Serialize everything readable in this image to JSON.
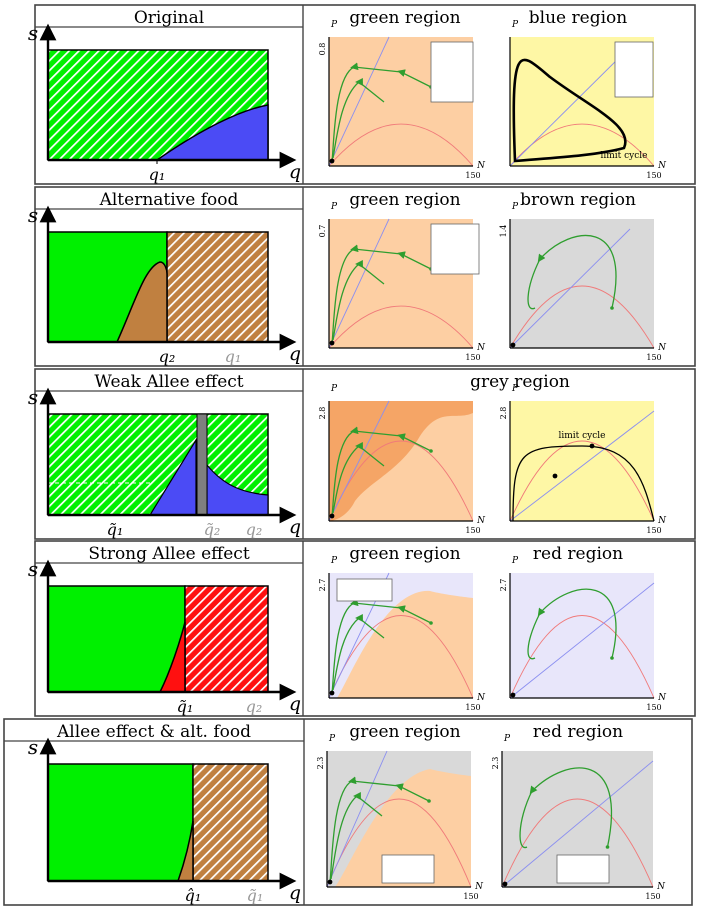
{
  "rows": [
    {
      "title": "Original",
      "s_label": "s",
      "q_label": "q",
      "left_ticks": [
        "q₁"
      ],
      "right_headers": [
        "green region",
        "blue region"
      ],
      "plots": [
        {
          "P_tick": "0.8",
          "N_tick": "150",
          "P_label": "P",
          "N_label": "N",
          "annotation": ""
        },
        {
          "P_tick": "",
          "N_tick": "150",
          "P_label": "P",
          "N_label": "N",
          "annotation": "limit cycle"
        }
      ]
    },
    {
      "title": "Alternative food",
      "s_label": "s",
      "q_label": "q",
      "left_ticks": [
        "q₂",
        "q₁"
      ],
      "right_headers": [
        "green region",
        "brown region"
      ],
      "plots": [
        {
          "P_tick": "0.7",
          "N_tick": "150",
          "P_label": "P",
          "N_label": "N",
          "annotation": ""
        },
        {
          "P_tick": "1.4",
          "N_tick": "150",
          "P_label": "P",
          "N_label": "N",
          "annotation": ""
        }
      ]
    },
    {
      "title": "Weak Allee effect",
      "s_label": "s",
      "q_label": "q",
      "left_ticks": [
        "q̃₁",
        "q̃₂",
        "q₂"
      ],
      "right_headers": [
        "grey region"
      ],
      "plots": [
        {
          "P_tick": "2.8",
          "N_tick": "150",
          "P_label": "P",
          "N_label": "N",
          "annotation": ""
        },
        {
          "P_tick": "2.8",
          "N_tick": "150",
          "P_label": "P",
          "N_label": "N",
          "annotation": "limit cycle"
        }
      ]
    },
    {
      "title": "Strong Allee effect",
      "s_label": "s",
      "q_label": "q",
      "left_ticks": [
        "q̃₁",
        "q₂"
      ],
      "right_headers": [
        "green region",
        "red region"
      ],
      "plots": [
        {
          "P_tick": "2.7",
          "N_tick": "150",
          "P_label": "P",
          "N_label": "N",
          "annotation": ""
        },
        {
          "P_tick": "2.7",
          "N_tick": "150",
          "P_label": "P",
          "N_label": "N",
          "annotation": ""
        }
      ]
    },
    {
      "title": "Allee effect & alt. food",
      "s_label": "s",
      "q_label": "q",
      "left_ticks": [
        "q̂₁",
        "q̃₁"
      ],
      "right_headers": [
        "green region",
        "red region"
      ],
      "plots": [
        {
          "P_tick": "2.3",
          "N_tick": "150",
          "P_label": "P",
          "N_label": "N",
          "annotation": ""
        },
        {
          "P_tick": "2.3",
          "N_tick": "150",
          "P_label": "P",
          "N_label": "N",
          "annotation": ""
        }
      ]
    }
  ],
  "colors": {
    "green": "#00f000",
    "blue": "#4b4bf5",
    "brown": "#c08040",
    "red": "#ff1010",
    "grey": "#7f7f7f",
    "peach": "#fdcfa3",
    "darkorange": "#f5a566",
    "yellow": "#fef7a5",
    "lightgrey": "#d9d9d9",
    "lavender": "#e8e6fa",
    "traj": "#2f9e2f",
    "nullP": "#8b8ff0",
    "nullN": "#f07a7a"
  }
}
